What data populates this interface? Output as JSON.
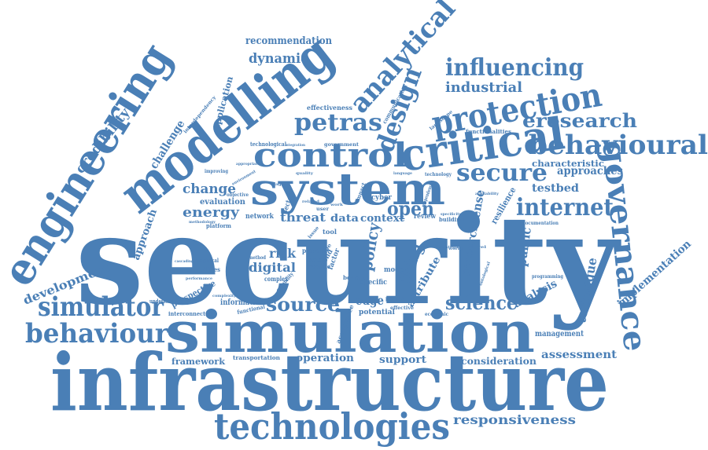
{
  "cloud": {
    "color": "#4a7fb6",
    "words": {
      "security": "security",
      "infrastructure": "infrastructure",
      "simulation": "simulation",
      "modelling": "modelling",
      "engineering": "engineering",
      "system": "system",
      "technologies": "technologies",
      "critical": "critical",
      "control": "control",
      "protection": "protection",
      "behavioural": "behavioural",
      "governance": "governance",
      "behaviour": "behaviour",
      "simulator": "simulator",
      "influencing": "influencing",
      "analytical": "analytical",
      "design": "design",
      "petras": "petras",
      "secure": "secure",
      "internet": "internet",
      "eresearch": "eresearch",
      "industrial": "industrial",
      "recommendation": "recommendation",
      "dynamic": "dynamic",
      "credibility": "credibility",
      "challenge": "challenge",
      "application": "application",
      "interdependency": "interdependency",
      "effectiveness": "effectiveness",
      "communication": "communication",
      "landscape": "landscape",
      "functionalities": "functionalities",
      "characteristic": "characteristic",
      "approaches": "approaches",
      "testbed": "testbed",
      "change": "change",
      "energy": "energy",
      "evaluation": "evaluation",
      "approach": "approach",
      "development": "development",
      "source": "source",
      "science": "science",
      "analysis": "analysis",
      "technique": "technique",
      "implementation": "implementation",
      "assessment": "assessment",
      "management": "management",
      "consideration": "consideration",
      "support": "support",
      "operation": "operation",
      "framework": "framework",
      "transportation": "transportation",
      "responsiveness": "responsiveness",
      "perspective": "perspective",
      "understanding": "understanding",
      "interconnected": "interconnected",
      "functional": "functional",
      "information": "information",
      "acceptance": "acceptance",
      "edge": "edge",
      "potential": "potential",
      "project": "project",
      "effective": "effective",
      "economic": "economic",
      "open": "open",
      "policy": "policy",
      "public": "public",
      "research": "research",
      "sense": "sense",
      "resilience": "resilience",
      "thing": "thing",
      "attribute": "attribute",
      "threat": "threat",
      "data": "data",
      "context": "context",
      "review": "review",
      "building": "building",
      "cyber": "cyber",
      "risk": "risk",
      "digital": "digital",
      "complex": "complex",
      "capability": "capability",
      "method": "method",
      "empirical": "empirical",
      "cascading": "cascading",
      "capabilities": "capabilities",
      "performance": "performance",
      "platform": "platform",
      "methodology": "methodology",
      "network": "network",
      "objective": "objective",
      "environment": "environment",
      "improving": "improving",
      "appropriate": "appropriate",
      "technological": "technological",
      "integration": "integration",
      "government": "government",
      "technology": "technology",
      "availability": "availability",
      "documentation": "documentation",
      "programming": "programming",
      "ontological": "ontological",
      "present": "present",
      "cscy": "cscy",
      "type": "type",
      "trend": "trend",
      "factor": "factor",
      "benefit": "benefit",
      "specific": "specific",
      "model": "model",
      "credible": "credible",
      "tool": "tool",
      "issue": "issue",
      "sector": "sector",
      "impact": "impact",
      "language": "language",
      "dependency": "dependency",
      "specificity": "specificity",
      "strategic": "strategic",
      "user": "user",
      "related": "related",
      "work": "work",
      "agent": "agent",
      "level": "level",
      "world": "world",
      "quality": "quality",
      "complexity": "complexity"
    }
  }
}
